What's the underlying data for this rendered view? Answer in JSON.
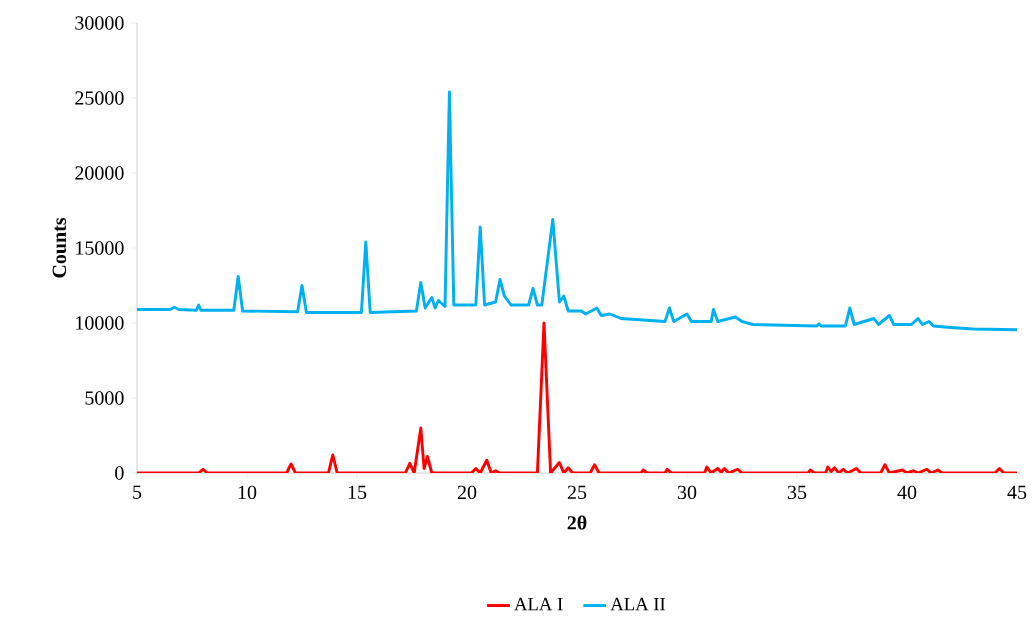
{
  "chart_data": {
    "type": "line",
    "xlabel": "**2θ**",
    "ylabel": "**Counts**",
    "xlim": [
      5,
      45
    ],
    "xticks": [
      5,
      10,
      15,
      20,
      25,
      30,
      35,
      40,
      45
    ],
    "ylim": [
      0,
      30000
    ],
    "yticks": [
      0,
      5000,
      10000,
      15000,
      20000,
      25000,
      30000
    ],
    "grid": false,
    "legend": "bottom",
    "marker": "none",
    "line_style": "solid",
    "series": [
      {
        "name": "ALA I",
        "color": "#ff0000",
        "x": [
          5,
          7.8,
          8.0,
          8.2,
          11.8,
          12.0,
          12.2,
          13.7,
          13.9,
          14.1,
          17.2,
          17.4,
          17.6,
          17.9,
          18.05,
          18.2,
          18.4,
          20.2,
          20.4,
          20.6,
          20.9,
          21.1,
          21.3,
          21.5,
          23.2,
          23.5,
          23.8,
          24.2,
          24.4,
          24.6,
          24.8,
          25.6,
          25.8,
          26.0,
          27.9,
          28.0,
          28.2,
          29.0,
          29.1,
          29.3,
          30.8,
          30.9,
          31.1,
          31.4,
          31.55,
          31.7,
          31.9,
          32.3,
          32.5,
          35.5,
          35.6,
          35.8,
          36.3,
          36.4,
          36.55,
          36.7,
          36.9,
          37.1,
          37.3,
          37.7,
          37.9,
          38.8,
          39.0,
          39.2,
          39.8,
          40.0,
          40.3,
          40.5,
          40.9,
          41.1,
          41.4,
          41.6,
          44.0,
          44.2,
          44.4,
          45
        ],
        "values": [
          0,
          0,
          250,
          0,
          0,
          600,
          0,
          0,
          1200,
          0,
          0,
          650,
          0,
          3000,
          300,
          1100,
          0,
          0,
          300,
          0,
          850,
          0,
          150,
          0,
          0,
          10000,
          0,
          700,
          0,
          350,
          0,
          0,
          550,
          0,
          0,
          200,
          0,
          0,
          250,
          0,
          0,
          400,
          0,
          300,
          50,
          300,
          0,
          250,
          0,
          0,
          200,
          0,
          0,
          400,
          100,
          350,
          0,
          250,
          0,
          300,
          0,
          0,
          550,
          0,
          200,
          0,
          150,
          0,
          250,
          0,
          200,
          0,
          0,
          300,
          0,
          0
        ]
      },
      {
        "name": "ALA II",
        "color": "#00b0f0",
        "x": [
          5,
          6.5,
          6.7,
          6.9,
          7.7,
          7.8,
          7.9,
          9.4,
          9.6,
          9.8,
          12.3,
          12.5,
          12.7,
          15.2,
          15.4,
          15.6,
          17.7,
          17.9,
          18.1,
          18.4,
          18.55,
          18.7,
          19.0,
          19.2,
          19.4,
          20.4,
          20.6,
          20.8,
          21.3,
          21.5,
          21.7,
          22.0,
          22.8,
          23.0,
          23.2,
          23.4,
          23.9,
          24.2,
          24.4,
          24.6,
          25.2,
          25.4,
          25.9,
          26.1,
          26.5,
          27,
          29.0,
          29.2,
          29.4,
          30.0,
          30.2,
          31.1,
          31.2,
          31.4,
          32.2,
          32.5,
          33.0,
          35.9,
          36.0,
          36.1,
          37.2,
          37.4,
          37.6,
          38.5,
          38.7,
          39.2,
          39.4,
          40.2,
          40.5,
          40.7,
          41.0,
          41.2,
          42,
          43,
          45
        ],
        "values": [
          10900,
          10900,
          11050,
          10900,
          10850,
          11200,
          10850,
          10850,
          13100,
          10800,
          10750,
          12500,
          10700,
          10700,
          15400,
          10700,
          10800,
          12700,
          11000,
          11700,
          11000,
          11500,
          11100,
          25400,
          11200,
          11200,
          16400,
          11200,
          11400,
          12900,
          11800,
          11200,
          11200,
          12300,
          11200,
          11200,
          16900,
          11400,
          11800,
          10800,
          10800,
          10600,
          11000,
          10500,
          10600,
          10300,
          10100,
          11000,
          10100,
          10600,
          10100,
          10100,
          10900,
          10100,
          10400,
          10100,
          9900,
          9800,
          9950,
          9800,
          9800,
          11000,
          9900,
          10300,
          9900,
          10500,
          9900,
          9900,
          10300,
          9900,
          10100,
          9800,
          9700,
          9600,
          9550
        ]
      }
    ]
  }
}
